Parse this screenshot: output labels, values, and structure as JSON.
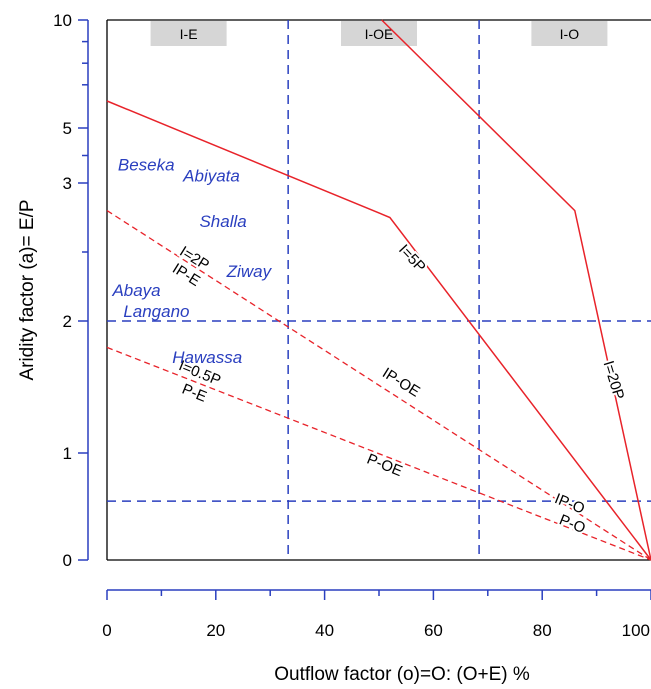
{
  "chart_data": {
    "type": "line",
    "xlabel": "Outflow factor (o)=O: (O+E) %",
    "ylabel": "Aridity factor (a)= E/P",
    "xlim": [
      0,
      100
    ],
    "x_ticks": [
      "0",
      "20",
      "40",
      "60",
      "80",
      "100"
    ],
    "y_ticks": [
      {
        "value": 0,
        "label": "0"
      },
      {
        "value": 1,
        "label": "1"
      },
      {
        "value": 2,
        "label": "2"
      },
      {
        "value": 3,
        "label": "3"
      },
      {
        "value": 5,
        "label": "5"
      },
      {
        "value": 10,
        "label": "10"
      }
    ],
    "regions": [
      {
        "label": "I-E",
        "x": 15
      },
      {
        "label": "I-OE",
        "x": 50
      },
      {
        "label": "I-O",
        "x": 85
      }
    ],
    "vertical_guides": [
      33.3,
      68.4
    ],
    "horizontal_guides": [
      2.0,
      0.55
    ],
    "series": [
      {
        "name": "I=20P",
        "style": "solid",
        "points": [
          [
            50.5,
            10
          ],
          [
            86,
            2.8
          ],
          [
            100,
            0
          ]
        ]
      },
      {
        "name": "I=5P",
        "style": "solid",
        "points": [
          [
            0,
            6.25
          ],
          [
            52,
            2.75
          ],
          [
            100,
            0
          ]
        ]
      },
      {
        "name": "I=2P IP-E",
        "style": "dashed",
        "points": [
          [
            0,
            2.8
          ],
          [
            100,
            0
          ]
        ]
      },
      {
        "name": "I=0.5P P-E",
        "style": "dashed",
        "points": [
          [
            0,
            1.8
          ],
          [
            100,
            0
          ]
        ]
      }
    ],
    "line_labels": [
      {
        "text": "I=20P",
        "x": 93,
        "y": 1.55,
        "angle": 73
      },
      {
        "text": "I=5P",
        "x": 56,
        "y": 2.45,
        "angle": 47
      },
      {
        "text": "I=2P",
        "x": 16,
        "y": 2.45,
        "angle": 32
      },
      {
        "text": "IP-E",
        "x": 14.5,
        "y": 2.33,
        "angle": 32
      },
      {
        "text": "IP-OE",
        "x": 54,
        "y": 1.53,
        "angle": 32
      },
      {
        "text": "IP-O",
        "x": 85,
        "y": 0.52,
        "angle": 22
      },
      {
        "text": "I=0.5P",
        "x": 17,
        "y": 1.6,
        "angle": 22
      },
      {
        "text": "P-E",
        "x": 16,
        "y": 1.45,
        "angle": 22
      },
      {
        "text": "P-OE",
        "x": 51,
        "y": 0.88,
        "angle": 22
      },
      {
        "text": "P-O",
        "x": 85.5,
        "y": 0.33,
        "angle": 22
      }
    ],
    "lakes": [
      {
        "name": "Beseka",
        "x": 2,
        "y": 3.45
      },
      {
        "name": "Abiyata",
        "x": 14,
        "y": 3.05
      },
      {
        "name": "Shalla",
        "x": 17,
        "y": 2.68
      },
      {
        "name": "Ziway",
        "x": 22,
        "y": 2.32
      },
      {
        "name": "Abaya",
        "x": 1,
        "y": 2.18
      },
      {
        "name": "Langano",
        "x": 3,
        "y": 2.03
      },
      {
        "name": "Hawassa",
        "x": 12,
        "y": 1.68
      }
    ],
    "grid": false,
    "legend": "none"
  }
}
